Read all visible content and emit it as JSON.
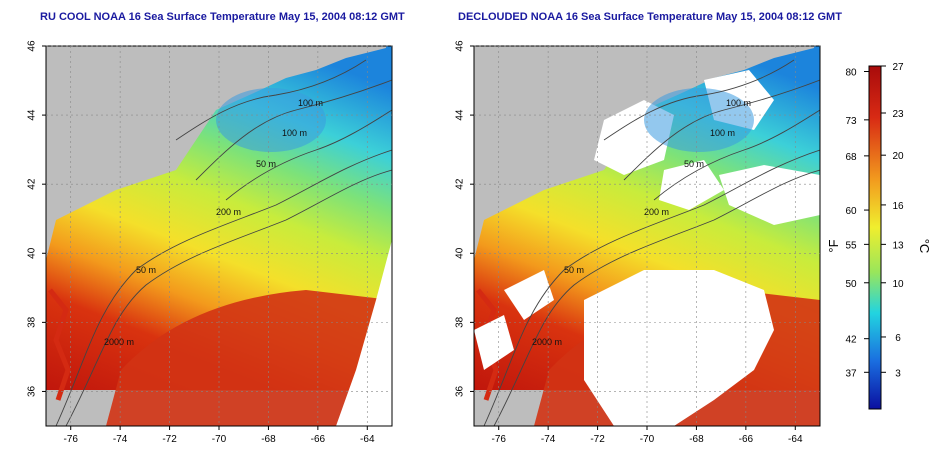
{
  "maps": {
    "left": {
      "title": "RU COOL NOAA 16 Sea Surface Temperature May 15, 2004 08:12 GMT",
      "variant": "cloudy"
    },
    "right": {
      "title": "DECLOUDED NOAA 16 Sea Surface Temperature May 15, 2004 08:12 GMT",
      "variant": "declouded"
    }
  },
  "axes": {
    "x_ticks": [
      "-76",
      "-74",
      "-72",
      "-70",
      "-68",
      "-66",
      "-64"
    ],
    "y_ticks": [
      "36",
      "38",
      "40",
      "42",
      "44",
      "46"
    ],
    "x_range": [
      -77,
      -63
    ],
    "y_range": [
      35,
      46
    ],
    "grid": "dotted"
  },
  "contours": [
    {
      "label": "100 m",
      "map": "upper-right"
    },
    {
      "label": "100 m",
      "map": "middle"
    },
    {
      "label": "50 m",
      "map": "gulf-of-maine"
    },
    {
      "label": "200 m",
      "map": "shelf-break"
    },
    {
      "label": "50 m",
      "map": "mid-atlantic"
    },
    {
      "label": "2000 m",
      "map": "slope"
    }
  ],
  "colorbar": {
    "f_label": "°F",
    "c_label": "°C",
    "f_ticks": [
      "80",
      "73",
      "68",
      "60",
      "55",
      "50",
      "42",
      "37"
    ],
    "c_ticks": [
      "27",
      "23",
      "20",
      "16",
      "13",
      "10",
      "6",
      "3"
    ],
    "colors": {
      "cold": "#0a0fa0",
      "blue": "#1a6ee0",
      "cyan": "#22d4e0",
      "green": "#9ae65a",
      "yellow": "#f0ee2e",
      "orange": "#f29a1e",
      "red": "#d82a14",
      "darkred": "#a80b0b"
    }
  },
  "colors": {
    "land": "#bdbdbd",
    "cloud": "#ffffff",
    "title": "#1a1aa0",
    "contour": "#444444"
  }
}
